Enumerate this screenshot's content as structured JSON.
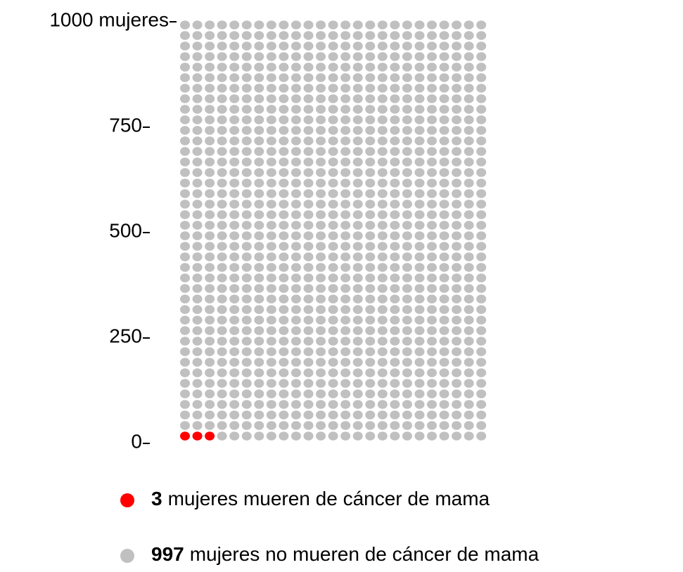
{
  "chart_data": {
    "type": "waffle",
    "series": [
      {
        "name": "mujeres mueren de cáncer de mama",
        "color": "#ff0000",
        "value": 3
      },
      {
        "name": "mujeres no mueren de cáncer de mama",
        "color": "#c0c0c0",
        "value": 997
      }
    ],
    "ylim": [
      0,
      1000
    ],
    "yticks": [
      0,
      250,
      500,
      750,
      {
        "value": 1000,
        "label": "1000 mujeres"
      }
    ]
  }
}
